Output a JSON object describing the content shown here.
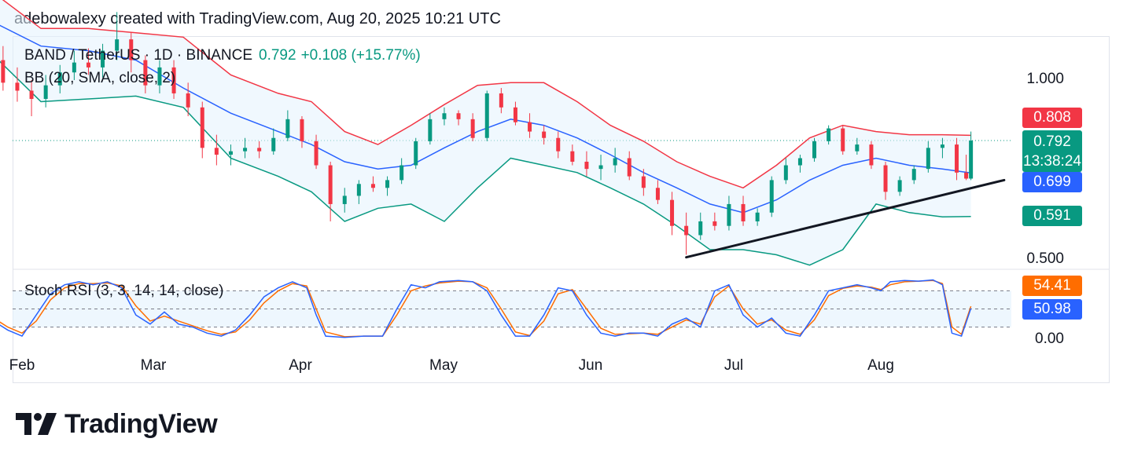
{
  "attribution": "adebowalexy created with TradingView.com, Aug 20, 2025 10:21 UTC",
  "legend": {
    "symbol": "BAND / TetherUS · 1D · BINANCE",
    "price": "0.792",
    "change": "+0.108 (+15.77%)",
    "bb": "BB (20, SMA, close, 2)",
    "stoch": "Stoch RSI (3, 3, 14, 14, close)"
  },
  "badges": {
    "bb_upper": "0.808",
    "price": "0.792",
    "countdown": "13:38:24",
    "bb_basis": "0.699",
    "bb_lower": "0.591",
    "stoch_d": "54.41",
    "stoch_k": "50.98"
  },
  "colors": {
    "up": "#089981",
    "down": "#f23645",
    "bb_upper": "#f23645",
    "bb_basis": "#2962ff",
    "bb_lower": "#089981",
    "bb_fill": "#e3f2fd",
    "stoch_k": "#2962ff",
    "stoch_d": "#ff6d00",
    "trendline": "#131722"
  },
  "brand": "TradingView",
  "chart_data": {
    "type": "candlestick",
    "price_axis": {
      "ticks": [
        "1.000",
        "0.500"
      ],
      "scale": "log"
    },
    "stoch_axis": {
      "ticks": [
        "0.00"
      ],
      "range": [
        0,
        100
      ],
      "bands": [
        80,
        50,
        20
      ]
    },
    "x_labels": [
      "Feb",
      "Mar",
      "Apr",
      "May",
      "Jun",
      "Jul",
      "Aug"
    ],
    "last_close": 0.792,
    "bb_latest": {
      "upper": 0.808,
      "basis": 0.699,
      "lower": 0.591
    },
    "stoch_latest": {
      "k": 50.98,
      "d": 54.41
    },
    "trendline": [
      {
        "date": "2025-06-21",
        "price": 0.505
      },
      {
        "date": "2025-08-27",
        "price": 0.68
      }
    ],
    "candles": [
      [
        "2025-01-26",
        1.17,
        1.27,
        1.1,
        1.14
      ],
      [
        "2025-01-28",
        1.08,
        1.14,
        0.96,
        0.99
      ],
      [
        "2025-01-31",
        0.99,
        1.05,
        0.92,
        0.96
      ],
      [
        "2025-02-03",
        0.96,
        1.0,
        0.87,
        0.93
      ],
      [
        "2025-02-06",
        0.93,
        1.02,
        0.9,
        0.98
      ],
      [
        "2025-02-09",
        0.98,
        1.06,
        0.95,
        1.03
      ],
      [
        "2025-02-12",
        1.03,
        1.12,
        1.0,
        1.07
      ],
      [
        "2025-02-15",
        1.07,
        1.13,
        1.02,
        1.05
      ],
      [
        "2025-02-18",
        1.05,
        1.15,
        1.01,
        1.12
      ],
      [
        "2025-02-21",
        1.12,
        1.3,
        1.08,
        1.17
      ],
      [
        "2025-02-24",
        1.17,
        1.2,
        1.03,
        1.08
      ],
      [
        "2025-02-27",
        1.08,
        1.1,
        0.95,
        0.98
      ],
      [
        "2025-03-02",
        0.98,
        1.08,
        0.95,
        1.05
      ],
      [
        "2025-03-05",
        1.05,
        1.08,
        0.93,
        0.95
      ],
      [
        "2025-03-08",
        0.95,
        0.99,
        0.87,
        0.9
      ],
      [
        "2025-03-11",
        0.9,
        0.92,
        0.74,
        0.77
      ],
      [
        "2025-03-14",
        0.77,
        0.81,
        0.72,
        0.75
      ],
      [
        "2025-03-17",
        0.75,
        0.78,
        0.72,
        0.76
      ],
      [
        "2025-03-20",
        0.76,
        0.8,
        0.74,
        0.77
      ],
      [
        "2025-03-23",
        0.77,
        0.79,
        0.74,
        0.76
      ],
      [
        "2025-03-26",
        0.76,
        0.83,
        0.75,
        0.8
      ],
      [
        "2025-03-29",
        0.8,
        0.89,
        0.79,
        0.86
      ],
      [
        "2025-04-01",
        0.86,
        0.87,
        0.77,
        0.79
      ],
      [
        "2025-04-04",
        0.79,
        0.81,
        0.71,
        0.72
      ],
      [
        "2025-04-07",
        0.72,
        0.73,
        0.58,
        0.62
      ],
      [
        "2025-04-10",
        0.62,
        0.66,
        0.6,
        0.64
      ],
      [
        "2025-04-13",
        0.64,
        0.68,
        0.62,
        0.67
      ],
      [
        "2025-04-16",
        0.67,
        0.69,
        0.65,
        0.66
      ],
      [
        "2025-04-19",
        0.66,
        0.69,
        0.64,
        0.68
      ],
      [
        "2025-04-22",
        0.68,
        0.74,
        0.67,
        0.72
      ],
      [
        "2025-04-25",
        0.72,
        0.8,
        0.71,
        0.79
      ],
      [
        "2025-04-28",
        0.79,
        0.88,
        0.78,
        0.86
      ],
      [
        "2025-05-01",
        0.86,
        0.9,
        0.84,
        0.88
      ],
      [
        "2025-05-04",
        0.88,
        0.89,
        0.84,
        0.86
      ],
      [
        "2025-05-07",
        0.86,
        0.88,
        0.79,
        0.8
      ],
      [
        "2025-05-10",
        0.8,
        0.96,
        0.79,
        0.95
      ],
      [
        "2025-05-13",
        0.95,
        0.97,
        0.88,
        0.9
      ],
      [
        "2025-05-16",
        0.9,
        0.92,
        0.84,
        0.85
      ],
      [
        "2025-05-19",
        0.85,
        0.88,
        0.8,
        0.82
      ],
      [
        "2025-05-22",
        0.82,
        0.84,
        0.78,
        0.8
      ],
      [
        "2025-05-25",
        0.8,
        0.82,
        0.74,
        0.76
      ],
      [
        "2025-05-28",
        0.76,
        0.78,
        0.72,
        0.73
      ],
      [
        "2025-05-31",
        0.73,
        0.76,
        0.69,
        0.71
      ],
      [
        "2025-06-03",
        0.71,
        0.75,
        0.68,
        0.72
      ],
      [
        "2025-06-06",
        0.72,
        0.77,
        0.7,
        0.74
      ],
      [
        "2025-06-09",
        0.74,
        0.76,
        0.68,
        0.69
      ],
      [
        "2025-06-12",
        0.69,
        0.71,
        0.64,
        0.66
      ],
      [
        "2025-06-15",
        0.66,
        0.68,
        0.62,
        0.63
      ],
      [
        "2025-06-18",
        0.63,
        0.65,
        0.55,
        0.57
      ],
      [
        "2025-06-21",
        0.57,
        0.6,
        0.51,
        0.55
      ],
      [
        "2025-06-24",
        0.55,
        0.6,
        0.54,
        0.58
      ],
      [
        "2025-06-27",
        0.58,
        0.6,
        0.56,
        0.57
      ],
      [
        "2025-06-30",
        0.57,
        0.64,
        0.56,
        0.62
      ],
      [
        "2025-07-03",
        0.62,
        0.64,
        0.57,
        0.58
      ],
      [
        "2025-07-06",
        0.58,
        0.61,
        0.57,
        0.6
      ],
      [
        "2025-07-09",
        0.6,
        0.69,
        0.59,
        0.68
      ],
      [
        "2025-07-12",
        0.68,
        0.74,
        0.67,
        0.72
      ],
      [
        "2025-07-15",
        0.72,
        0.75,
        0.7,
        0.74
      ],
      [
        "2025-07-18",
        0.74,
        0.8,
        0.73,
        0.79
      ],
      [
        "2025-07-21",
        0.79,
        0.84,
        0.78,
        0.83
      ],
      [
        "2025-07-24",
        0.83,
        0.84,
        0.75,
        0.76
      ],
      [
        "2025-07-27",
        0.76,
        0.8,
        0.75,
        0.78
      ],
      [
        "2025-07-30",
        0.78,
        0.79,
        0.71,
        0.72
      ],
      [
        "2025-08-02",
        0.72,
        0.73,
        0.63,
        0.65
      ],
      [
        "2025-08-05",
        0.65,
        0.69,
        0.64,
        0.68
      ],
      [
        "2025-08-08",
        0.68,
        0.72,
        0.67,
        0.71
      ],
      [
        "2025-08-11",
        0.71,
        0.79,
        0.7,
        0.77
      ],
      [
        "2025-08-14",
        0.77,
        0.8,
        0.74,
        0.78
      ],
      [
        "2025-08-17",
        0.78,
        0.8,
        0.68,
        0.7
      ],
      [
        "2025-08-19",
        0.7,
        0.75,
        0.68,
        0.684
      ],
      [
        "2025-08-20",
        0.684,
        0.82,
        0.68,
        0.792
      ]
    ],
    "bb_upper": [
      [
        "2025-01-26",
        1.4
      ],
      [
        "2025-02-05",
        1.22
      ],
      [
        "2025-02-15",
        1.22
      ],
      [
        "2025-02-25",
        1.2
      ],
      [
        "2025-03-07",
        1.18
      ],
      [
        "2025-03-17",
        1.02
      ],
      [
        "2025-03-27",
        0.95
      ],
      [
        "2025-04-03",
        0.92
      ],
      [
        "2025-04-10",
        0.82
      ],
      [
        "2025-04-17",
        0.78
      ],
      [
        "2025-04-24",
        0.84
      ],
      [
        "2025-05-01",
        0.91
      ],
      [
        "2025-05-08",
        0.98
      ],
      [
        "2025-05-15",
        0.99
      ],
      [
        "2025-05-22",
        0.99
      ],
      [
        "2025-05-29",
        0.92
      ],
      [
        "2025-06-05",
        0.84
      ],
      [
        "2025-06-12",
        0.79
      ],
      [
        "2025-06-19",
        0.73
      ],
      [
        "2025-06-26",
        0.69
      ],
      [
        "2025-07-03",
        0.66
      ],
      [
        "2025-07-10",
        0.72
      ],
      [
        "2025-07-17",
        0.8
      ],
      [
        "2025-07-24",
        0.84
      ],
      [
        "2025-07-31",
        0.82
      ],
      [
        "2025-08-07",
        0.81
      ],
      [
        "2025-08-14",
        0.81
      ],
      [
        "2025-08-20",
        0.808
      ]
    ],
    "bb_basis": [
      [
        "2025-01-26",
        1.25
      ],
      [
        "2025-02-05",
        1.14
      ],
      [
        "2025-02-15",
        1.12
      ],
      [
        "2025-02-25",
        1.08
      ],
      [
        "2025-03-07",
        0.97
      ],
      [
        "2025-03-17",
        0.88
      ],
      [
        "2025-03-27",
        0.82
      ],
      [
        "2025-04-03",
        0.78
      ],
      [
        "2025-04-10",
        0.73
      ],
      [
        "2025-04-17",
        0.71
      ],
      [
        "2025-04-24",
        0.72
      ],
      [
        "2025-05-01",
        0.77
      ],
      [
        "2025-05-08",
        0.82
      ],
      [
        "2025-05-15",
        0.86
      ],
      [
        "2025-05-22",
        0.84
      ],
      [
        "2025-05-29",
        0.8
      ],
      [
        "2025-06-05",
        0.75
      ],
      [
        "2025-06-12",
        0.7
      ],
      [
        "2025-06-19",
        0.66
      ],
      [
        "2025-06-26",
        0.62
      ],
      [
        "2025-07-03",
        0.6
      ],
      [
        "2025-07-10",
        0.63
      ],
      [
        "2025-07-17",
        0.68
      ],
      [
        "2025-07-24",
        0.72
      ],
      [
        "2025-07-31",
        0.74
      ],
      [
        "2025-08-07",
        0.72
      ],
      [
        "2025-08-14",
        0.71
      ],
      [
        "2025-08-20",
        0.699
      ]
    ],
    "bb_lower": [
      [
        "2025-01-26",
        1.1
      ],
      [
        "2025-02-05",
        0.92
      ],
      [
        "2025-02-15",
        0.93
      ],
      [
        "2025-02-25",
        0.94
      ],
      [
        "2025-03-07",
        0.9
      ],
      [
        "2025-03-17",
        0.74
      ],
      [
        "2025-03-27",
        0.69
      ],
      [
        "2025-04-03",
        0.65
      ],
      [
        "2025-04-10",
        0.58
      ],
      [
        "2025-04-17",
        0.61
      ],
      [
        "2025-04-24",
        0.62
      ],
      [
        "2025-05-01",
        0.58
      ],
      [
        "2025-05-08",
        0.66
      ],
      [
        "2025-05-15",
        0.74
      ],
      [
        "2025-05-22",
        0.72
      ],
      [
        "2025-05-29",
        0.7
      ],
      [
        "2025-06-05",
        0.66
      ],
      [
        "2025-06-12",
        0.62
      ],
      [
        "2025-06-19",
        0.57
      ],
      [
        "2025-06-26",
        0.52
      ],
      [
        "2025-07-03",
        0.52
      ],
      [
        "2025-07-10",
        0.51
      ],
      [
        "2025-07-17",
        0.49
      ],
      [
        "2025-07-24",
        0.52
      ],
      [
        "2025-07-31",
        0.62
      ],
      [
        "2025-08-07",
        0.6
      ],
      [
        "2025-08-14",
        0.59
      ],
      [
        "2025-08-20",
        0.591
      ]
    ],
    "stoch_k": [
      [
        "2025-01-26",
        30
      ],
      [
        "2025-01-29",
        15
      ],
      [
        "2025-02-01",
        5
      ],
      [
        "2025-02-04",
        40
      ],
      [
        "2025-02-07",
        75
      ],
      [
        "2025-02-10",
        90
      ],
      [
        "2025-02-13",
        95
      ],
      [
        "2025-02-16",
        90
      ],
      [
        "2025-02-19",
        95
      ],
      [
        "2025-02-22",
        85
      ],
      [
        "2025-02-25",
        40
      ],
      [
        "2025-02-28",
        25
      ],
      [
        "2025-03-03",
        45
      ],
      [
        "2025-03-06",
        25
      ],
      [
        "2025-03-09",
        20
      ],
      [
        "2025-03-12",
        10
      ],
      [
        "2025-03-15",
        5
      ],
      [
        "2025-03-18",
        15
      ],
      [
        "2025-03-21",
        40
      ],
      [
        "2025-03-24",
        70
      ],
      [
        "2025-03-27",
        85
      ],
      [
        "2025-03-30",
        95
      ],
      [
        "2025-04-02",
        85
      ],
      [
        "2025-04-04",
        40
      ],
      [
        "2025-04-06",
        5
      ],
      [
        "2025-04-10",
        3
      ],
      [
        "2025-04-14",
        5
      ],
      [
        "2025-04-18",
        5
      ],
      [
        "2025-04-21",
        50
      ],
      [
        "2025-04-24",
        90
      ],
      [
        "2025-04-27",
        85
      ],
      [
        "2025-04-30",
        95
      ],
      [
        "2025-05-04",
        97
      ],
      [
        "2025-05-07",
        95
      ],
      [
        "2025-05-10",
        80
      ],
      [
        "2025-05-13",
        40
      ],
      [
        "2025-05-16",
        5
      ],
      [
        "2025-05-19",
        5
      ],
      [
        "2025-05-22",
        40
      ],
      [
        "2025-05-25",
        85
      ],
      [
        "2025-05-28",
        80
      ],
      [
        "2025-05-31",
        40
      ],
      [
        "2025-06-03",
        10
      ],
      [
        "2025-06-06",
        5
      ],
      [
        "2025-06-09",
        10
      ],
      [
        "2025-06-12",
        10
      ],
      [
        "2025-06-15",
        5
      ],
      [
        "2025-06-18",
        25
      ],
      [
        "2025-06-21",
        35
      ],
      [
        "2025-06-24",
        20
      ],
      [
        "2025-06-27",
        80
      ],
      [
        "2025-06-30",
        90
      ],
      [
        "2025-07-03",
        40
      ],
      [
        "2025-07-06",
        20
      ],
      [
        "2025-07-09",
        35
      ],
      [
        "2025-07-12",
        10
      ],
      [
        "2025-07-15",
        5
      ],
      [
        "2025-07-18",
        40
      ],
      [
        "2025-07-21",
        80
      ],
      [
        "2025-07-24",
        85
      ],
      [
        "2025-07-27",
        90
      ],
      [
        "2025-07-30",
        85
      ],
      [
        "2025-08-01",
        80
      ],
      [
        "2025-08-03",
        95
      ],
      [
        "2025-08-06",
        97
      ],
      [
        "2025-08-09",
        96
      ],
      [
        "2025-08-12",
        98
      ],
      [
        "2025-08-14",
        90
      ],
      [
        "2025-08-16",
        10
      ],
      [
        "2025-08-18",
        5
      ],
      [
        "2025-08-20",
        50.98
      ]
    ],
    "stoch_d": [
      [
        "2025-01-26",
        35
      ],
      [
        "2025-01-29",
        20
      ],
      [
        "2025-02-01",
        10
      ],
      [
        "2025-02-04",
        30
      ],
      [
        "2025-02-07",
        65
      ],
      [
        "2025-02-10",
        85
      ],
      [
        "2025-02-13",
        92
      ],
      [
        "2025-02-16",
        92
      ],
      [
        "2025-02-19",
        93
      ],
      [
        "2025-02-22",
        88
      ],
      [
        "2025-02-25",
        55
      ],
      [
        "2025-02-28",
        30
      ],
      [
        "2025-03-03",
        38
      ],
      [
        "2025-03-06",
        30
      ],
      [
        "2025-03-09",
        22
      ],
      [
        "2025-03-12",
        14
      ],
      [
        "2025-03-15",
        8
      ],
      [
        "2025-03-18",
        12
      ],
      [
        "2025-03-21",
        32
      ],
      [
        "2025-03-24",
        60
      ],
      [
        "2025-03-27",
        80
      ],
      [
        "2025-03-30",
        92
      ],
      [
        "2025-04-02",
        88
      ],
      [
        "2025-04-04",
        50
      ],
      [
        "2025-04-06",
        12
      ],
      [
        "2025-04-10",
        4
      ],
      [
        "2025-04-14",
        5
      ],
      [
        "2025-04-18",
        5
      ],
      [
        "2025-04-21",
        40
      ],
      [
        "2025-04-24",
        80
      ],
      [
        "2025-04-27",
        88
      ],
      [
        "2025-04-30",
        93
      ],
      [
        "2025-05-04",
        96
      ],
      [
        "2025-05-07",
        95
      ],
      [
        "2025-05-10",
        85
      ],
      [
        "2025-05-13",
        50
      ],
      [
        "2025-05-16",
        12
      ],
      [
        "2025-05-19",
        6
      ],
      [
        "2025-05-22",
        30
      ],
      [
        "2025-05-25",
        75
      ],
      [
        "2025-05-28",
        82
      ],
      [
        "2025-05-31",
        50
      ],
      [
        "2025-06-03",
        18
      ],
      [
        "2025-06-06",
        8
      ],
      [
        "2025-06-09",
        9
      ],
      [
        "2025-06-12",
        10
      ],
      [
        "2025-06-15",
        8
      ],
      [
        "2025-06-18",
        20
      ],
      [
        "2025-06-21",
        32
      ],
      [
        "2025-06-24",
        25
      ],
      [
        "2025-06-27",
        70
      ],
      [
        "2025-06-30",
        88
      ],
      [
        "2025-07-03",
        50
      ],
      [
        "2025-07-06",
        25
      ],
      [
        "2025-07-09",
        32
      ],
      [
        "2025-07-12",
        15
      ],
      [
        "2025-07-15",
        8
      ],
      [
        "2025-07-18",
        32
      ],
      [
        "2025-07-21",
        72
      ],
      [
        "2025-07-24",
        84
      ],
      [
        "2025-07-27",
        88
      ],
      [
        "2025-07-30",
        86
      ],
      [
        "2025-08-01",
        82
      ],
      [
        "2025-08-03",
        90
      ],
      [
        "2025-08-06",
        95
      ],
      [
        "2025-08-09",
        96
      ],
      [
        "2025-08-12",
        97
      ],
      [
        "2025-08-14",
        92
      ],
      [
        "2025-08-16",
        20
      ],
      [
        "2025-08-18",
        8
      ],
      [
        "2025-08-20",
        54.41
      ]
    ]
  }
}
